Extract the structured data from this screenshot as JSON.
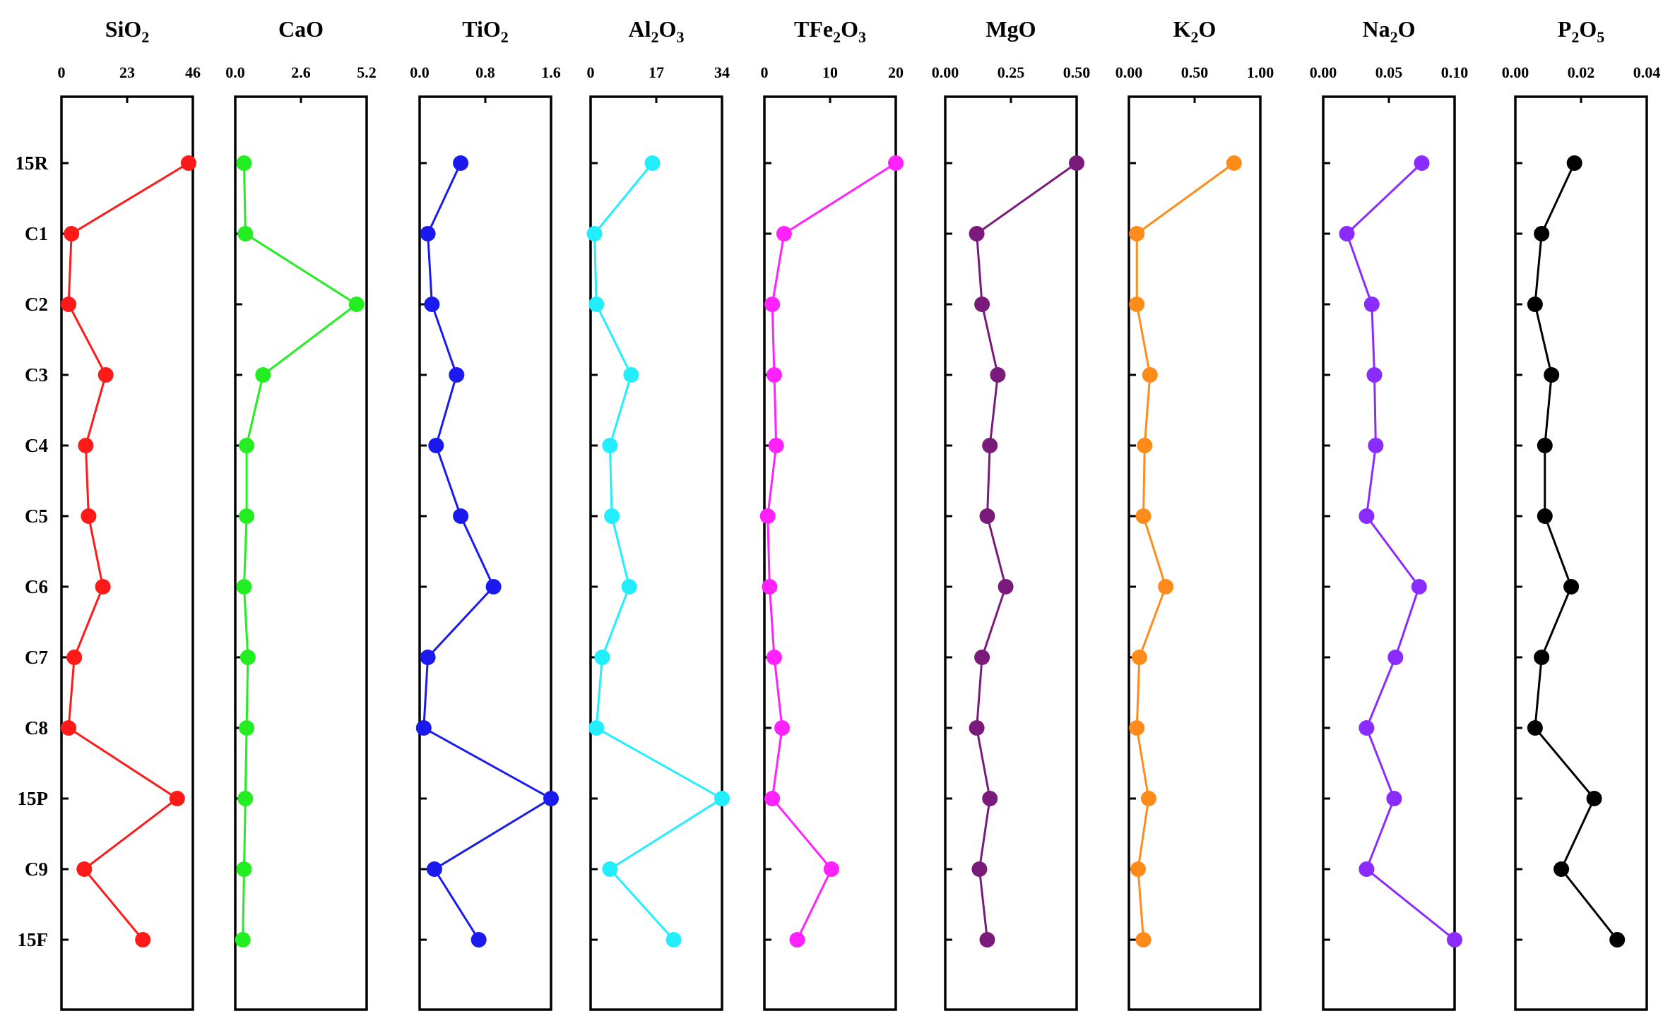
{
  "chart_data": {
    "type": "line",
    "samples": [
      "15R",
      "C1",
      "C2",
      "C3",
      "C4",
      "C5",
      "C6",
      "C7",
      "C8",
      "15P",
      "C9",
      "15F"
    ],
    "panels": [
      {
        "name": "SiO2",
        "title_parts": [
          [
            "Si",
            false
          ],
          [
            "O",
            false
          ],
          [
            "2",
            true
          ]
        ],
        "ticks": [
          "0",
          "23",
          "46"
        ],
        "xlim": [
          0,
          46
        ],
        "color": "#ff1a1a",
        "values": [
          44.5,
          3.5,
          2.5,
          15.5,
          8.5,
          9.5,
          14.5,
          4.5,
          2.5,
          40.5,
          8.0,
          28.5
        ]
      },
      {
        "name": "CaO",
        "title_parts": [
          [
            "Ca",
            false
          ],
          [
            "O",
            false
          ]
        ],
        "ticks": [
          "0.0",
          "2.6",
          "5.2"
        ],
        "xlim": [
          0,
          5.2
        ],
        "color": "#22ee22",
        "values": [
          0.35,
          0.4,
          4.8,
          1.1,
          0.45,
          0.45,
          0.35,
          0.5,
          0.45,
          0.4,
          0.35,
          0.3
        ]
      },
      {
        "name": "TiO2",
        "title_parts": [
          [
            "Ti",
            false
          ],
          [
            "O",
            false
          ],
          [
            "2",
            true
          ]
        ],
        "ticks": [
          "0.0",
          "0.8",
          "1.6"
        ],
        "xlim": [
          0,
          1.6
        ],
        "color": "#1a1aee",
        "values": [
          0.5,
          0.1,
          0.15,
          0.45,
          0.2,
          0.5,
          0.9,
          0.1,
          0.05,
          1.6,
          0.18,
          0.72
        ]
      },
      {
        "name": "Al2O3",
        "title_parts": [
          [
            "Al",
            false
          ],
          [
            "2",
            true
          ],
          [
            "O",
            false
          ],
          [
            "3",
            true
          ]
        ],
        "ticks": [
          "0",
          "17",
          "34"
        ],
        "xlim": [
          0,
          34
        ],
        "color": "#22eeff",
        "values": [
          16.0,
          1.0,
          1.5,
          10.5,
          5.0,
          5.5,
          10.0,
          3.0,
          1.5,
          34.0,
          5.0,
          21.5
        ]
      },
      {
        "name": "TFe2O3",
        "title_parts": [
          [
            "TFe",
            false
          ],
          [
            "2",
            true
          ],
          [
            "O",
            false
          ],
          [
            "3",
            true
          ]
        ],
        "ticks": [
          "0",
          "10",
          "20"
        ],
        "xlim": [
          0,
          20
        ],
        "color": "#ff22ff",
        "values": [
          20.0,
          3.0,
          1.2,
          1.5,
          1.8,
          0.5,
          0.8,
          1.5,
          2.7,
          1.2,
          10.2,
          5.0
        ]
      },
      {
        "name": "MgO",
        "title_parts": [
          [
            "Mg",
            false
          ],
          [
            "O",
            false
          ]
        ],
        "ticks": [
          "0.00",
          "0.25",
          "0.50"
        ],
        "xlim": [
          0,
          0.5
        ],
        "color": "#7a1a7a",
        "values": [
          0.5,
          0.12,
          0.14,
          0.2,
          0.17,
          0.16,
          0.23,
          0.14,
          0.12,
          0.17,
          0.13,
          0.16
        ]
      },
      {
        "name": "K2O",
        "title_parts": [
          [
            "K",
            false
          ],
          [
            "2",
            true
          ],
          [
            "O",
            false
          ]
        ],
        "ticks": [
          "0.00",
          "0.50",
          "1.00"
        ],
        "xlim": [
          0,
          1.0
        ],
        "color": "#ff8c1a",
        "values": [
          0.8,
          0.06,
          0.06,
          0.16,
          0.12,
          0.11,
          0.28,
          0.08,
          0.06,
          0.15,
          0.07,
          0.11
        ]
      },
      {
        "name": "Na2O",
        "title_parts": [
          [
            "Na",
            false
          ],
          [
            "2",
            true
          ],
          [
            "O",
            false
          ]
        ],
        "ticks": [
          "0.00",
          "0.05",
          "0.10"
        ],
        "xlim": [
          0,
          0.1
        ],
        "color": "#8a2bff",
        "values": [
          0.075,
          0.018,
          0.037,
          0.039,
          0.04,
          0.033,
          0.073,
          0.055,
          0.033,
          0.054,
          0.033,
          0.1
        ]
      },
      {
        "name": "P2O5",
        "title_parts": [
          [
            "P",
            false
          ],
          [
            "2",
            true
          ],
          [
            "O",
            false
          ],
          [
            "5",
            true
          ]
        ],
        "ticks": [
          "0.00",
          "0.02",
          "0.04"
        ],
        "xlim": [
          0,
          0.04
        ],
        "color": "#000000",
        "values": [
          0.018,
          0.008,
          0.006,
          0.011,
          0.009,
          0.009,
          0.017,
          0.008,
          0.006,
          0.024,
          0.014,
          0.031
        ]
      }
    ]
  }
}
